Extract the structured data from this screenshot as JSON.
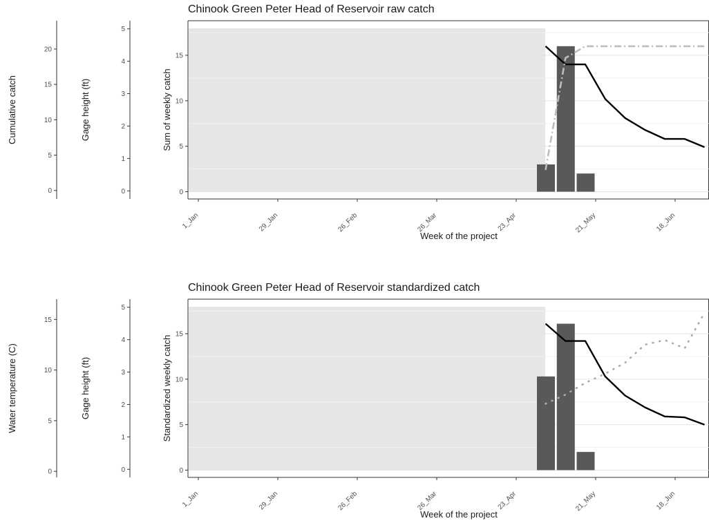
{
  "chart_data": [
    {
      "type": "bar",
      "title": "Chinook Green Peter Head of Reservoir raw catch",
      "xlabel": "Week of the project",
      "ylabel": "Sum of weekly catch",
      "x_tick_labels": [
        "1_Jan",
        "29_Jan",
        "26_Feb",
        "26_Mar",
        "23_Apr",
        "21_May",
        "18_Jun"
      ],
      "y_ticks": [
        0,
        5,
        10,
        15
      ],
      "ylim": [
        -0.8,
        18.8
      ],
      "shaded_region": {
        "from_week": 0,
        "to_week": 17.5
      },
      "bars": {
        "weeks": [
          18,
          19,
          20
        ],
        "values": [
          3,
          16,
          2
        ]
      },
      "series": [
        {
          "name": "",
          "style": "solid",
          "color": "#000000",
          "x": [
            18,
            19,
            20,
            21,
            22,
            23,
            24,
            25,
            26
          ],
          "y": [
            16,
            14,
            14,
            10.2,
            8.1,
            6.8,
            5.8,
            5.8,
            4.9
          ]
        },
        {
          "name": "",
          "style": "dashdot",
          "color": "#bdbdbd",
          "x": [
            18,
            19,
            20,
            21,
            22,
            23,
            24,
            25,
            26
          ],
          "y": [
            2.4,
            14.7,
            16,
            16,
            16,
            16,
            16,
            16,
            16
          ]
        }
      ],
      "extra_axes": [
        {
          "label": "Cumulative catch",
          "ticks": [
            0,
            5,
            10,
            15,
            20
          ],
          "range": [
            -1.2,
            24
          ]
        },
        {
          "label": "Gage height (ft)",
          "ticks": [
            0,
            1,
            2,
            3,
            4,
            5
          ],
          "range": [
            -0.25,
            5.25
          ]
        }
      ],
      "grid": "horizontal",
      "legend": "none"
    },
    {
      "type": "bar",
      "title": "Chinook Green Peter Head of Reservoir standardized catch",
      "xlabel": "Week of the project",
      "ylabel": "Standardized weekly catch",
      "x_tick_labels": [
        "1_Jan",
        "29_Jan",
        "26_Feb",
        "26_Mar",
        "23_Apr",
        "21_May",
        "18_Jun"
      ],
      "y_ticks": [
        0,
        5,
        10,
        15
      ],
      "ylim": [
        -0.8,
        18.8
      ],
      "shaded_region": {
        "from_week": 0,
        "to_week": 17.5
      },
      "bars": {
        "weeks": [
          18,
          19,
          20
        ],
        "values": [
          10.3,
          16.1,
          2
        ]
      },
      "series": [
        {
          "name": "",
          "style": "solid",
          "color": "#000000",
          "x": [
            18,
            19,
            20,
            21,
            22,
            23,
            24,
            25,
            26
          ],
          "y": [
            16.1,
            14.2,
            14.2,
            10.3,
            8.2,
            6.9,
            5.9,
            5.8,
            5
          ]
        },
        {
          "name": "",
          "style": "dotted",
          "color": "#aaaaaa",
          "x": [
            18,
            19,
            20,
            21,
            22,
            23,
            24,
            25,
            26
          ],
          "y": [
            7.3,
            8.3,
            9.6,
            10.6,
            11.8,
            13.8,
            14.3,
            13.4,
            17.3
          ]
        }
      ],
      "extra_axes": [
        {
          "label": "Water temperature (C)",
          "ticks": [
            0,
            5,
            10,
            15
          ],
          "range": [
            -0.6,
            17
          ]
        },
        {
          "label": "Gage height (ft)",
          "ticks": [
            0,
            1,
            2,
            3,
            4,
            5
          ],
          "range": [
            -0.25,
            5.25
          ]
        }
      ],
      "grid": "horizontal",
      "legend": "none"
    }
  ]
}
